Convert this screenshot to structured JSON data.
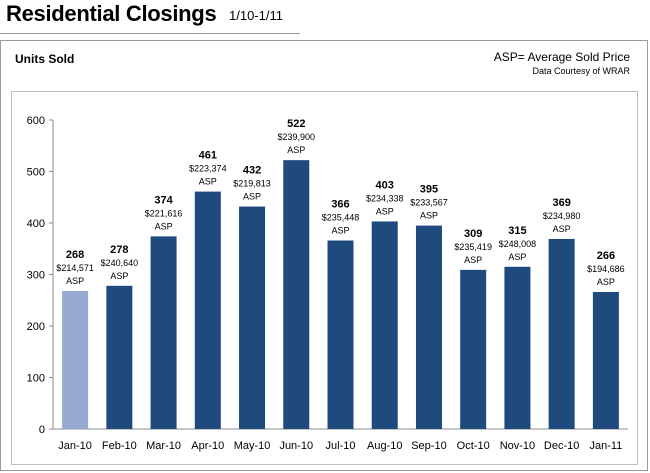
{
  "header": {
    "title": "Residential Closings",
    "date_range": "1/10-1/11"
  },
  "panel": {
    "units_label": "Units  Sold",
    "legend_note": "ASP= Average Sold Price",
    "source_note": "Data Courtesy of WRAR"
  },
  "chart_data": {
    "type": "bar",
    "categories": [
      "Jan-10",
      "Feb-10",
      "Mar-10",
      "Apr-10",
      "May-10",
      "Jun-10",
      "Jul-10",
      "Aug-10",
      "Sep-10",
      "Oct-10",
      "Nov-10",
      "Dec-10",
      "Jan-11"
    ],
    "values": [
      268,
      278,
      374,
      461,
      432,
      522,
      366,
      403,
      395,
      309,
      315,
      369,
      266
    ],
    "price_labels": [
      "$214,571",
      "$240,640",
      "$221,616",
      "$223,374",
      "$219,813",
      "$239,900",
      "$235,448",
      "$234,338",
      "$233,567",
      "$235,419",
      "$248,008",
      "$234,980",
      "$194,686"
    ],
    "price_suffix": "ASP",
    "title": "Residential Closings",
    "xlabel": "",
    "ylabel": "Units  Sold",
    "ylim": [
      0,
      600
    ],
    "yticks": [
      0,
      100,
      200,
      300,
      400,
      500,
      600
    ],
    "grid": false,
    "legend": "none",
    "colors": {
      "highlight_bar": "#95a9d1",
      "bar": "#1f4a7e",
      "axis": "#8c8c8c"
    }
  }
}
